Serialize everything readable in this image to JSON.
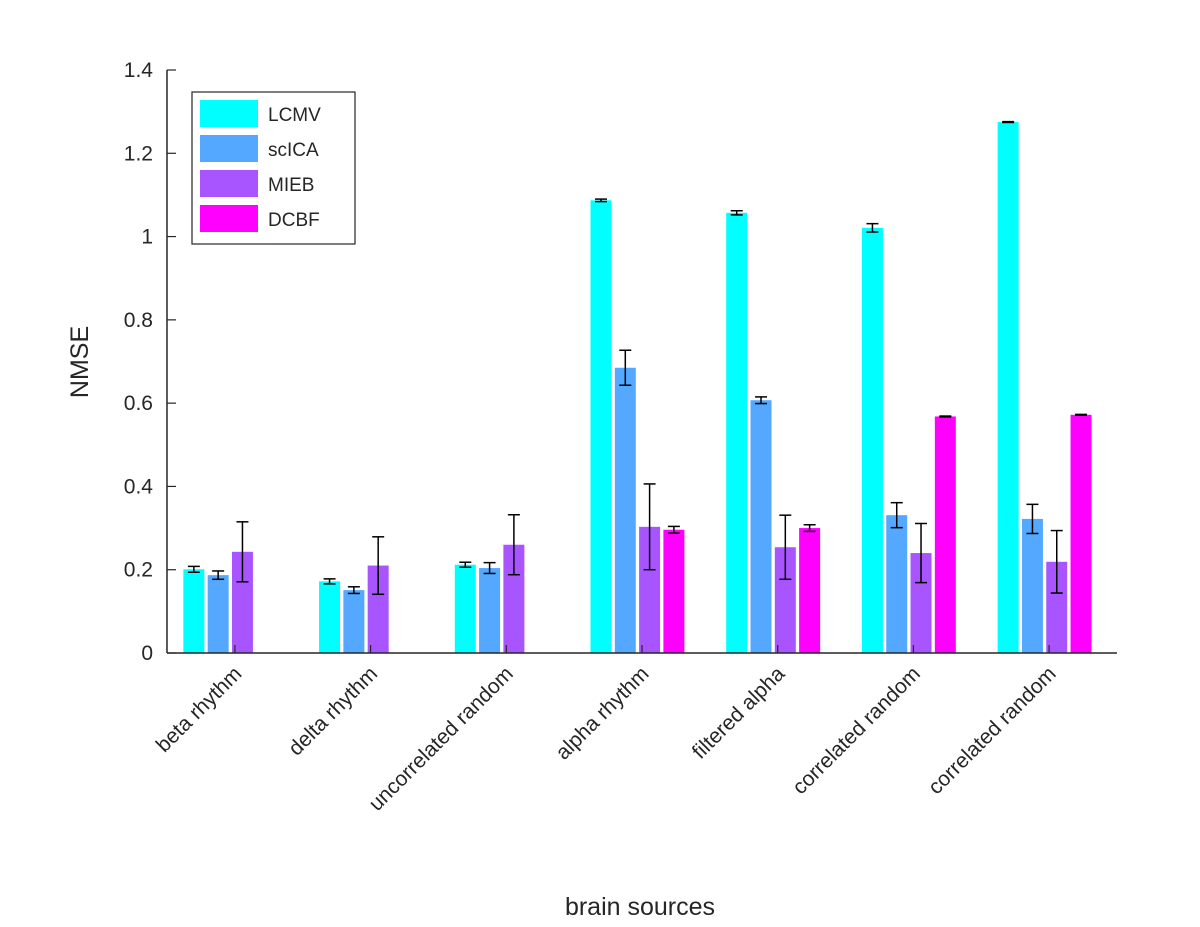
{
  "chart_data": {
    "type": "bar",
    "xlabel": "brain sources",
    "ylabel": "NMSE",
    "ylim": [
      0,
      1.4
    ],
    "yticks": [
      "0",
      "0.2",
      "0.4",
      "0.6",
      "0.8",
      "1",
      "1.2",
      "1.4"
    ],
    "categories": [
      "beta rhythm",
      "delta rhythm",
      "uncorrelated random",
      "alpha rhythm",
      "filtered alpha",
      "correlated random",
      "correlated random"
    ],
    "series": [
      {
        "name": "LCMV",
        "color": "#00ffff",
        "values": [
          0.201,
          0.172,
          0.212,
          1.087,
          1.057,
          1.021,
          1.275
        ],
        "errors": [
          0.007,
          0.006,
          0.006,
          0.003,
          0.005,
          0.01,
          0.001
        ]
      },
      {
        "name": "scICA",
        "color": "#54a8ff",
        "values": [
          0.187,
          0.151,
          0.204,
          0.685,
          0.607,
          0.331,
          0.322
        ],
        "errors": [
          0.01,
          0.008,
          0.013,
          0.042,
          0.008,
          0.03,
          0.035
        ]
      },
      {
        "name": "MIEB",
        "color": "#a855ff",
        "values": [
          0.243,
          0.21,
          0.26,
          0.303,
          0.254,
          0.24,
          0.219
        ],
        "errors": [
          0.072,
          0.069,
          0.072,
          0.103,
          0.077,
          0.071,
          0.075
        ]
      },
      {
        "name": "DCBF",
        "color": "#ff00ff",
        "values": [
          0,
          0,
          0,
          0.296,
          0.3,
          0.568,
          0.572
        ],
        "errors": [
          0,
          0,
          0,
          0.008,
          0.008,
          0.001,
          0.001
        ]
      }
    ],
    "legend_position": "top-left",
    "grid": false
  }
}
